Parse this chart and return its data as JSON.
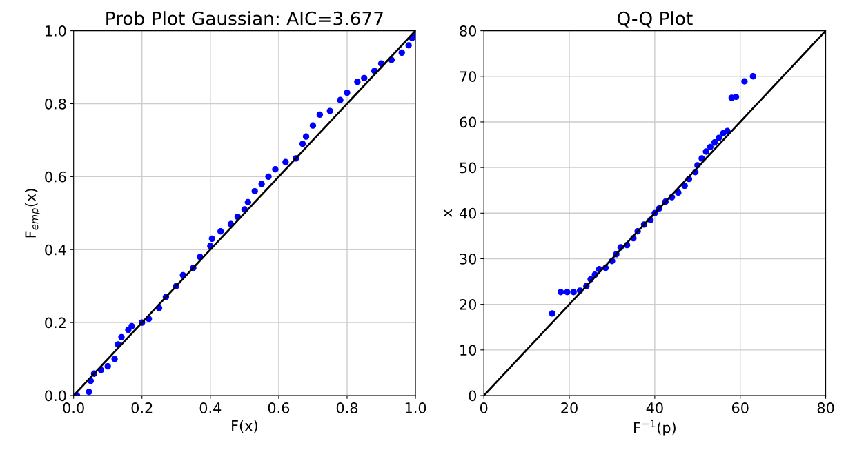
{
  "chart_data": [
    {
      "type": "scatter",
      "title": "Prob Plot Gaussian: AIC=3.677",
      "xlabel": "F(x)",
      "ylabel": "F$_{emp}$(x)",
      "grid": true,
      "xlim": [
        0,
        1
      ],
      "ylim": [
        0,
        1
      ],
      "xticks": [
        {
          "value": 0,
          "label": "0.0"
        },
        {
          "value": 0.2,
          "label": "0.2"
        },
        {
          "value": 0.4,
          "label": "0.4"
        },
        {
          "value": 0.6,
          "label": "0.6"
        },
        {
          "value": 0.8,
          "label": "0.8"
        },
        {
          "value": 1,
          "label": "1.0"
        }
      ],
      "yticks": [
        {
          "value": 0,
          "label": "0.0"
        },
        {
          "value": 0.2,
          "label": "0.2"
        },
        {
          "value": 0.4,
          "label": "0.4"
        },
        {
          "value": 0.6,
          "label": "0.6"
        },
        {
          "value": 0.8,
          "label": "0.8"
        },
        {
          "value": 1,
          "label": "1.0"
        }
      ],
      "series": [
        {
          "color": "#0000ff",
          "marker": "circle",
          "x": [
            0.01,
            0.045,
            0.05,
            0.06,
            0.08,
            0.1,
            0.12,
            0.13,
            0.14,
            0.16,
            0.17,
            0.2,
            0.22,
            0.25,
            0.27,
            0.3,
            0.32,
            0.35,
            0.37,
            0.4,
            0.405,
            0.43,
            0.46,
            0.48,
            0.5,
            0.51,
            0.53,
            0.55,
            0.57,
            0.59,
            0.62,
            0.65,
            0.67,
            0.68,
            0.7,
            0.72,
            0.75,
            0.78,
            0.8,
            0.83,
            0.85,
            0.88,
            0.9,
            0.93,
            0.96,
            0.98,
            0.99,
            1.0
          ],
          "values": [
            0.0,
            0.01,
            0.04,
            0.06,
            0.07,
            0.08,
            0.1,
            0.14,
            0.16,
            0.18,
            0.19,
            0.2,
            0.21,
            0.24,
            0.27,
            0.3,
            0.33,
            0.35,
            0.38,
            0.41,
            0.43,
            0.45,
            0.47,
            0.49,
            0.51,
            0.53,
            0.56,
            0.58,
            0.6,
            0.62,
            0.64,
            0.65,
            0.69,
            0.71,
            0.74,
            0.77,
            0.78,
            0.81,
            0.83,
            0.86,
            0.87,
            0.89,
            0.91,
            0.92,
            0.94,
            0.96,
            0.98,
            0.99
          ]
        },
        {
          "type": "line",
          "color": "#000000",
          "x": [
            0,
            1
          ],
          "values": [
            0,
            1
          ]
        }
      ]
    },
    {
      "type": "scatter",
      "title": "Q-Q Plot",
      "xlabel": "F$^{−1}$(p)",
      "ylabel": "x",
      "grid": true,
      "xlim": [
        0,
        80
      ],
      "ylim": [
        0,
        80
      ],
      "xticks": [
        0,
        20,
        40,
        60,
        80
      ],
      "yticks": [
        0,
        10,
        20,
        30,
        40,
        50,
        60,
        70,
        80
      ],
      "series": [
        {
          "color": "#0000ff",
          "marker": "circle",
          "x": [
            16,
            18,
            19.5,
            21,
            22.5,
            24,
            25,
            26,
            27,
            28.5,
            30,
            31,
            32,
            33.5,
            35,
            36,
            37.5,
            39,
            40,
            41,
            42.5,
            44,
            45.5,
            47,
            48,
            49.5,
            50,
            51,
            52,
            53,
            54,
            55,
            56,
            57,
            58,
            59,
            61,
            63
          ],
          "values": [
            18,
            22.7,
            22.7,
            22.7,
            23,
            24,
            25.5,
            26.5,
            27.7,
            28,
            29.5,
            31,
            32.5,
            33,
            34.5,
            36,
            37.5,
            38.5,
            40,
            41,
            42.5,
            43.5,
            44.5,
            46,
            47.5,
            49,
            50.5,
            52,
            53.5,
            54.5,
            55.5,
            56.5,
            57.5,
            58,
            65.3,
            65.5,
            68.9,
            70
          ]
        },
        {
          "type": "line",
          "color": "#000000",
          "x": [
            0,
            80
          ],
          "values": [
            0,
            80
          ]
        }
      ]
    }
  ]
}
